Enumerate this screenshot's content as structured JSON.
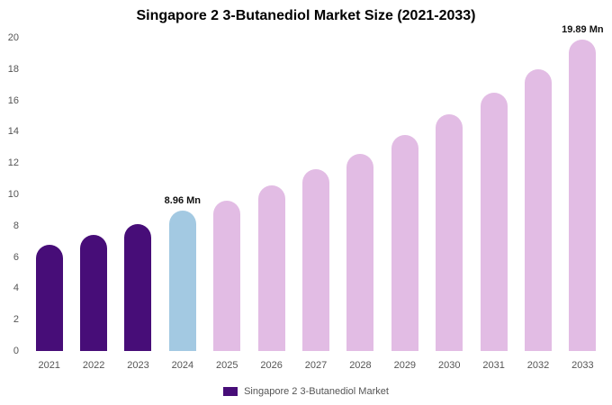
{
  "chart_data": {
    "type": "bar",
    "title": "Singapore 2 3-Butanediol Market Size (2021-2033)",
    "categories": [
      "2021",
      "2022",
      "2023",
      "2024",
      "2025",
      "2026",
      "2027",
      "2028",
      "2029",
      "2030",
      "2031",
      "2032",
      "2033"
    ],
    "values": [
      6.8,
      7.4,
      8.1,
      8.96,
      9.6,
      10.6,
      11.6,
      12.6,
      13.8,
      15.1,
      16.5,
      18.0,
      19.89
    ],
    "bar_colors": [
      "#470d78",
      "#470d78",
      "#470d78",
      "#a3c9e2",
      "#e2bce4",
      "#e2bce4",
      "#e2bce4",
      "#e2bce4",
      "#e2bce4",
      "#e2bce4",
      "#e2bce4",
      "#e2bce4",
      "#e2bce4"
    ],
    "annotations": [
      {
        "index": 3,
        "text": "8.96 Mn"
      },
      {
        "index": 12,
        "text": "19.89 Mn"
      }
    ],
    "ylim": [
      0,
      20
    ],
    "yticks": [
      0,
      2,
      4,
      6,
      8,
      10,
      12,
      14,
      16,
      18,
      20
    ],
    "xlabel": "",
    "ylabel": "",
    "grid": false,
    "legend_position": "bottom",
    "legend": [
      {
        "label": "Singapore 2 3-Butanediol Market",
        "color": "#470d78"
      }
    ]
  }
}
